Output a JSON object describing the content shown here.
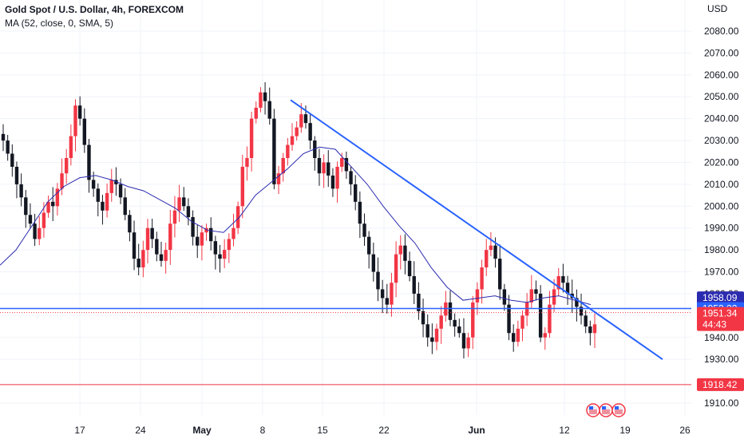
{
  "legend": {
    "title": "Gold Spot / U.S. Dollar, 4h, FOREXCOM",
    "indicator": "MA (52, close, 0, SMA, 5)"
  },
  "currency": "USD",
  "colors": {
    "up": "#089981",
    "down": "#f23645",
    "bull_body": "#f23645",
    "bear_body": "#131722",
    "ma": "#2b2bb0",
    "trendline": "#2962ff",
    "support": "#2962ff",
    "resistance_low": "#f23645",
    "price_label": "#f23645",
    "ma_label": "#2b2bb0"
  },
  "chart_data": {
    "type": "candlestick",
    "xaxis": {
      "ticks": [
        {
          "label": "17",
          "x": 100
        },
        {
          "label": "24",
          "x": 176
        },
        {
          "label": "May",
          "x": 253,
          "bold": true
        },
        {
          "label": "8",
          "x": 329
        },
        {
          "label": "15",
          "x": 404
        },
        {
          "label": "22",
          "x": 481
        },
        {
          "label": "Jun",
          "x": 597,
          "bold": true
        },
        {
          "label": "12",
          "x": 707
        },
        {
          "label": "19",
          "x": 783
        },
        {
          "label": "26",
          "x": 858
        }
      ]
    },
    "yaxis": {
      "range": [
        1903,
        2085
      ],
      "ticks": [
        1910,
        1930,
        1940,
        1950,
        1960,
        1970,
        1980,
        1990,
        2000,
        2010,
        2020,
        2030,
        2040,
        2050,
        2060,
        2070,
        2080
      ]
    },
    "price_labels": [
      {
        "text": "1958.09",
        "value": 1958.09,
        "color": "#2b2bb0"
      },
      {
        "text": "1953.22",
        "value": 1953.22,
        "color": "#2962ff"
      },
      {
        "text": "1951.34",
        "value": 1951.34,
        "color": "#f23645",
        "sub": "44:43"
      },
      {
        "text": "1918.42",
        "value": 1918.42,
        "color": "#f23645"
      }
    ],
    "hlines": [
      {
        "value": 1953.22,
        "color": "#2962ff",
        "width": 1.5,
        "dash": false
      },
      {
        "value": 1918.42,
        "color": "#f23645",
        "width": 1,
        "dash": false
      },
      {
        "value": 1951.34,
        "color": "#f23645",
        "width": 1,
        "dash": true
      }
    ],
    "trendline": {
      "x1": 364,
      "v1": 2048.5,
      "x2": 830,
      "v2": 1930
    },
    "ma_points": [
      [
        0,
        1973
      ],
      [
        20,
        1980
      ],
      [
        40,
        1991
      ],
      [
        60,
        2002
      ],
      [
        80,
        2009
      ],
      [
        100,
        2013
      ],
      [
        120,
        2014
      ],
      [
        140,
        2012
      ],
      [
        160,
        2009
      ],
      [
        180,
        2007
      ],
      [
        200,
        2003
      ],
      [
        220,
        1999
      ],
      [
        240,
        1993
      ],
      [
        260,
        1989
      ],
      [
        280,
        1988
      ],
      [
        300,
        1995
      ],
      [
        320,
        2005
      ],
      [
        340,
        2011
      ],
      [
        360,
        2017
      ],
      [
        380,
        2024
      ],
      [
        400,
        2027
      ],
      [
        420,
        2026
      ],
      [
        440,
        2018
      ],
      [
        460,
        2010
      ],
      [
        480,
        2000
      ],
      [
        500,
        1991
      ],
      [
        520,
        1983
      ],
      [
        540,
        1972
      ],
      [
        560,
        1963
      ],
      [
        580,
        1957
      ],
      [
        600,
        1958
      ],
      [
        620,
        1959
      ],
      [
        640,
        1957
      ],
      [
        660,
        1956
      ],
      [
        680,
        1958
      ],
      [
        700,
        1959
      ],
      [
        720,
        1957
      ],
      [
        740,
        1955
      ]
    ],
    "candles_close": [
      2030,
      2024,
      2018,
      2010,
      2004,
      1996,
      1992,
      1985,
      1990,
      1997,
      2002,
      2000,
      2008,
      2015,
      2022,
      2032,
      2046,
      2040,
      2028,
      2012,
      2008,
      2002,
      1998,
      2006,
      2012,
      2010,
      2004,
      1996,
      1988,
      1976,
      1972,
      1980,
      1990,
      1985,
      1978,
      1975,
      1980,
      1992,
      1998,
      2004,
      2000,
      1995,
      1986,
      1982,
      1988,
      1990,
      1984,
      1978,
      1976,
      1980,
      1985,
      1990,
      2000,
      2018,
      2022,
      2040,
      2045,
      2052,
      2048,
      2040,
      2010,
      2015,
      2022,
      2028,
      2032,
      2036,
      2042,
      2038,
      2030,
      2022,
      2015,
      2020,
      2014,
      2008,
      2018,
      2022,
      2016,
      2010,
      2002,
      1992,
      1986,
      1978,
      1970,
      1962,
      1958,
      1955,
      1965,
      1978,
      1982,
      1975,
      1968,
      1960,
      1952,
      1946,
      1940,
      1938,
      1944,
      1950,
      1956,
      1948,
      1945,
      1942,
      1935,
      1940,
      1956,
      1962,
      1972,
      1980,
      1982,
      1976,
      1962,
      1955,
      1942,
      1938,
      1944,
      1950,
      1956,
      1962,
      1960,
      1940,
      1942,
      1955,
      1962,
      1968,
      1965,
      1960,
      1958,
      1954,
      1950,
      1945,
      1942,
      1946
    ]
  }
}
